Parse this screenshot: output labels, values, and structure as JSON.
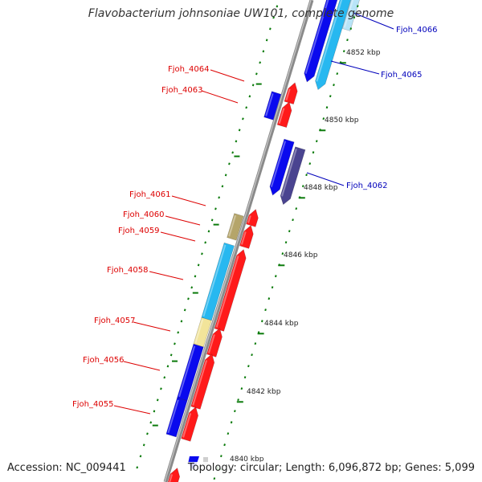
{
  "title": "Flavobacterium johnsoniae UW101, complete genome",
  "accession": "Accession: NC_009441",
  "summary": "Topology: circular; Length: 6,096,872 bp; Genes: 5,099",
  "colors": {
    "backbone": "#8a8a8a",
    "tick": "#0a7a0a",
    "forward_red": "#ff1a1a",
    "reverse_blue": "#0a0aee",
    "light_blue": "#27b8f0",
    "slate": "#4a4490",
    "khaki": "#b5a56a",
    "pale_yellow": "#f2e49a",
    "label_red": "#dd0000",
    "label_blue": "#0000bb"
  },
  "kbp_labels": [
    "4852 kbp",
    "4850 kbp",
    "4848 kbp",
    "4846 kbp",
    "4844 kbp",
    "4842 kbp",
    "4840 kbp"
  ],
  "gene_labels": [
    {
      "name": "Fjoh_4066",
      "color": "blue"
    },
    {
      "name": "Fjoh_4065",
      "color": "blue"
    },
    {
      "name": "Fjoh_4064",
      "color": "red"
    },
    {
      "name": "Fjoh_4063",
      "color": "red"
    },
    {
      "name": "Fjoh_4062",
      "color": "blue"
    },
    {
      "name": "Fjoh_4061",
      "color": "red"
    },
    {
      "name": "Fjoh_4060",
      "color": "red"
    },
    {
      "name": "Fjoh_4059",
      "color": "red"
    },
    {
      "name": "Fjoh_4058",
      "color": "red"
    },
    {
      "name": "Fjoh_4057",
      "color": "red"
    },
    {
      "name": "Fjoh_4056",
      "color": "red"
    },
    {
      "name": "Fjoh_4055",
      "color": "red"
    }
  ]
}
